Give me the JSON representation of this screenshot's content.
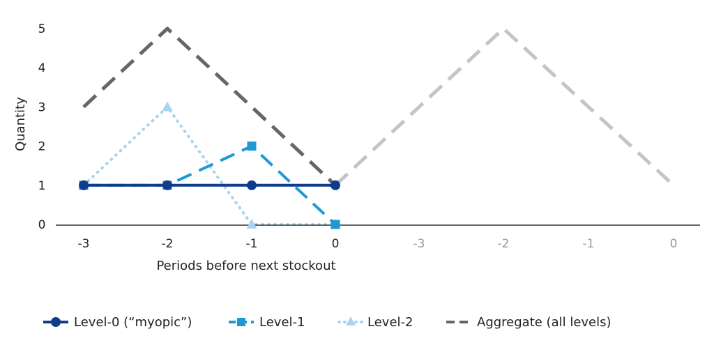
{
  "chart_data": {
    "type": "line",
    "title": "",
    "xlabel": "Periods before next stockout",
    "ylabel": "Quantity",
    "ylim": [
      0,
      5
    ],
    "yticks": [
      "0",
      "1",
      "2",
      "3",
      "4",
      "5"
    ],
    "x_labels_main": [
      "-3",
      "-2",
      "-1",
      "0"
    ],
    "x_labels_faded": [
      "-3",
      "-2",
      "-1",
      "0"
    ],
    "grid": false,
    "legend_position": "bottom",
    "series": [
      {
        "name": "Level-0 (“myopic”)",
        "color": "#0f3d8c",
        "style": "solid",
        "marker": "circle",
        "values": [
          1,
          1,
          1,
          1
        ],
        "x_index": [
          0,
          1,
          2,
          3
        ]
      },
      {
        "name": "Level-1",
        "color": "#1b9ad6",
        "style": "dashed",
        "marker": "square",
        "values": [
          1,
          1,
          2,
          0
        ],
        "x_index": [
          0,
          1,
          2,
          3
        ]
      },
      {
        "name": "Level-2",
        "color": "#a8d4f0",
        "style": "dotted",
        "marker": "triangle",
        "values": [
          1,
          3,
          0,
          0
        ],
        "x_index": [
          0,
          1,
          2,
          3
        ]
      },
      {
        "name": "Aggregate (all levels)",
        "color": "#666666",
        "style": "dashed",
        "marker": "none",
        "values": [
          3,
          5,
          3,
          1
        ],
        "x_index": [
          0,
          1,
          2,
          3
        ]
      },
      {
        "name": "",
        "color": "#c4c4c4",
        "style": "dashed",
        "marker": "none",
        "values": [
          1,
          3,
          5,
          3,
          1
        ],
        "x_index": [
          3,
          4,
          5,
          6,
          7
        ]
      }
    ]
  }
}
